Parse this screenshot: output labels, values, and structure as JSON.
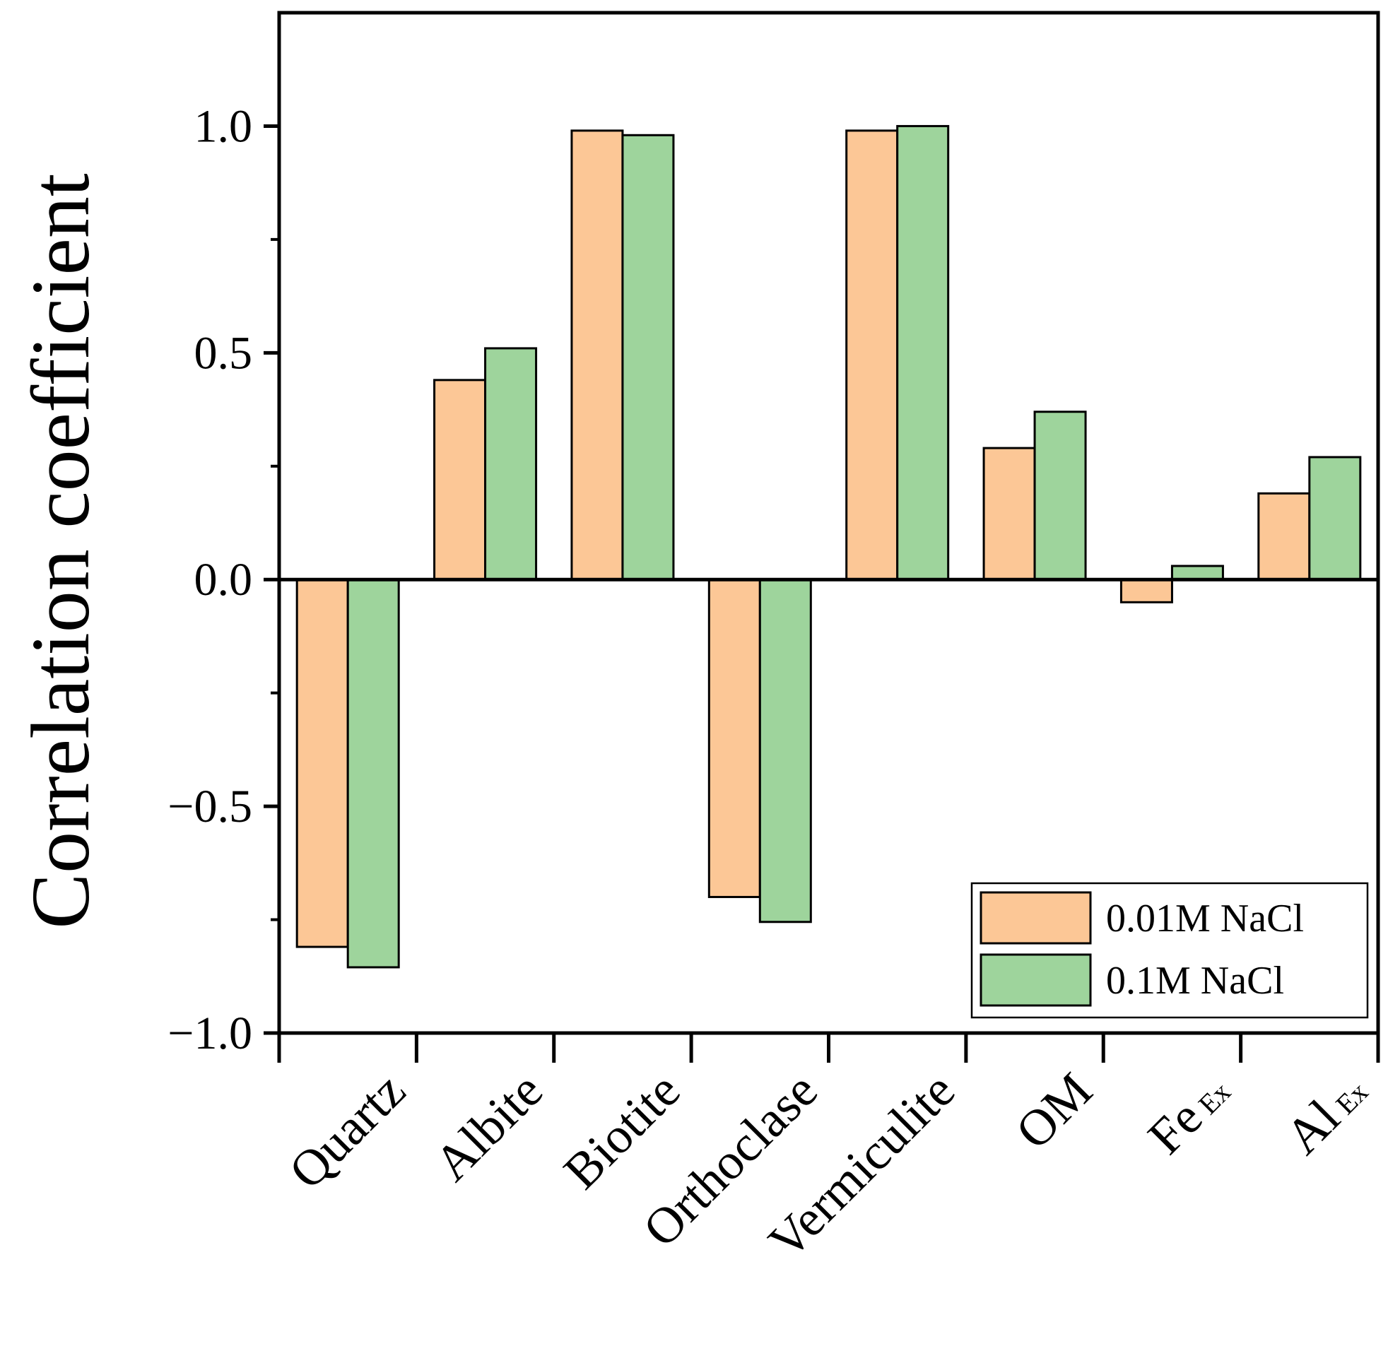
{
  "chart_data": {
    "type": "bar",
    "title": "",
    "xlabel": "",
    "ylabel": "Correlation coefficient",
    "ylim": [
      -1.0,
      1.25
    ],
    "yticks": [
      {
        "value": 1.0,
        "label": "1.0"
      },
      {
        "value": 0.5,
        "label": "0.5"
      },
      {
        "value": 0.0,
        "label": "0.0"
      },
      {
        "value": -0.5,
        "label": "−0.5"
      },
      {
        "value": -1.0,
        "label": "−1.0"
      }
    ],
    "yminor": [
      0.75,
      0.25,
      -0.25,
      -0.75
    ],
    "categories": [
      {
        "label": "Quartz",
        "sub": ""
      },
      {
        "label": "Albite",
        "sub": ""
      },
      {
        "label": "Biotite",
        "sub": ""
      },
      {
        "label": "Orthoclase",
        "sub": ""
      },
      {
        "label": "Vermiculite",
        "sub": ""
      },
      {
        "label": "OM",
        "sub": ""
      },
      {
        "label": "Fe",
        "sub": "Ex"
      },
      {
        "label": "Al",
        "sub": "Ex"
      }
    ],
    "series": [
      {
        "name": "0.01M NaCl",
        "color": "#FCC796",
        "values": [
          -0.81,
          0.44,
          0.99,
          -0.7,
          0.99,
          0.29,
          -0.05,
          0.19
        ]
      },
      {
        "name": "0.1M NaCl",
        "color": "#9ED49C",
        "values": [
          -0.855,
          0.51,
          0.98,
          -0.755,
          1.0,
          0.37,
          0.03,
          0.27
        ]
      }
    ],
    "legend": "bottom-right",
    "grid": false
  }
}
